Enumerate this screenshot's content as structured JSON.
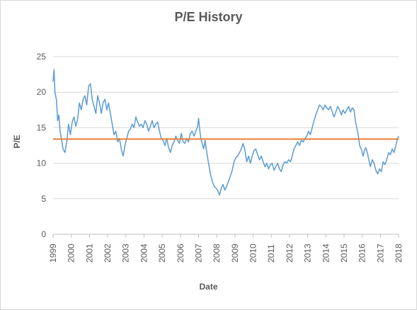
{
  "chart_data": {
    "type": "line",
    "title": "P/E History",
    "xlabel": "Date",
    "ylabel": "P/E",
    "ylim": [
      0,
      25
    ],
    "yticks": [
      "0",
      "5",
      "10",
      "15",
      "20",
      "25"
    ],
    "xlim": [
      1999.0,
      2018.0
    ],
    "xticks": [
      "1999",
      "2000",
      "2001",
      "2002",
      "2003",
      "2004",
      "2005",
      "2006",
      "2007",
      "2008",
      "2009",
      "2010",
      "2011",
      "2012",
      "2013",
      "2014",
      "2015",
      "2016",
      "2017",
      "2018"
    ],
    "grid": true,
    "legend": "none",
    "series": [
      {
        "color": "#5B9BD5",
        "points": [
          [
            1999.0,
            21.5
          ],
          [
            1999.05,
            23.2
          ],
          [
            1999.1,
            20.0
          ],
          [
            1999.18,
            19.0
          ],
          [
            1999.25,
            16.0
          ],
          [
            1999.32,
            16.8
          ],
          [
            1999.38,
            14.5
          ],
          [
            1999.45,
            13.5
          ],
          [
            1999.55,
            12.0
          ],
          [
            1999.65,
            11.5
          ],
          [
            1999.75,
            13.0
          ],
          [
            1999.85,
            15.5
          ],
          [
            1999.95,
            14.0
          ],
          [
            2000.05,
            15.8
          ],
          [
            2000.15,
            16.5
          ],
          [
            2000.25,
            15.2
          ],
          [
            2000.35,
            16.2
          ],
          [
            2000.45,
            18.5
          ],
          [
            2000.55,
            17.5
          ],
          [
            2000.65,
            19.0
          ],
          [
            2000.75,
            19.5
          ],
          [
            2000.85,
            18.2
          ],
          [
            2000.95,
            20.8
          ],
          [
            2001.05,
            21.2
          ],
          [
            2001.15,
            19.0
          ],
          [
            2001.25,
            18.0
          ],
          [
            2001.35,
            17.0
          ],
          [
            2001.45,
            19.5
          ],
          [
            2001.55,
            18.5
          ],
          [
            2001.65,
            17.0
          ],
          [
            2001.75,
            18.5
          ],
          [
            2001.85,
            19.0
          ],
          [
            2001.95,
            17.5
          ],
          [
            2002.05,
            18.5
          ],
          [
            2002.15,
            17.0
          ],
          [
            2002.25,
            15.5
          ],
          [
            2002.35,
            14.0
          ],
          [
            2002.45,
            14.5
          ],
          [
            2002.55,
            13.0
          ],
          [
            2002.65,
            13.5
          ],
          [
            2002.75,
            12.0
          ],
          [
            2002.85,
            11.0
          ],
          [
            2002.95,
            12.5
          ],
          [
            2003.05,
            13.5
          ],
          [
            2003.15,
            14.5
          ],
          [
            2003.25,
            14.8
          ],
          [
            2003.35,
            15.5
          ],
          [
            2003.45,
            15.0
          ],
          [
            2003.55,
            16.5
          ],
          [
            2003.65,
            15.8
          ],
          [
            2003.75,
            15.2
          ],
          [
            2003.85,
            15.5
          ],
          [
            2003.95,
            15.0
          ],
          [
            2004.05,
            16.0
          ],
          [
            2004.15,
            15.5
          ],
          [
            2004.25,
            14.5
          ],
          [
            2004.35,
            15.2
          ],
          [
            2004.45,
            16.0
          ],
          [
            2004.55,
            15.0
          ],
          [
            2004.65,
            15.5
          ],
          [
            2004.75,
            15.8
          ],
          [
            2004.85,
            14.5
          ],
          [
            2004.95,
            13.5
          ],
          [
            2005.05,
            13.2
          ],
          [
            2005.15,
            12.5
          ],
          [
            2005.25,
            13.5
          ],
          [
            2005.35,
            12.2
          ],
          [
            2005.45,
            11.5
          ],
          [
            2005.55,
            12.5
          ],
          [
            2005.65,
            13.0
          ],
          [
            2005.75,
            13.8
          ],
          [
            2005.85,
            13.2
          ],
          [
            2005.95,
            12.8
          ],
          [
            2006.05,
            14.2
          ],
          [
            2006.15,
            13.0
          ],
          [
            2006.25,
            12.8
          ],
          [
            2006.35,
            13.5
          ],
          [
            2006.45,
            13.0
          ],
          [
            2006.55,
            14.2
          ],
          [
            2006.65,
            14.5
          ],
          [
            2006.75,
            13.8
          ],
          [
            2006.85,
            14.5
          ],
          [
            2006.95,
            15.2
          ],
          [
            2007.0,
            16.3
          ],
          [
            2007.05,
            15.0
          ],
          [
            2007.12,
            13.5
          ],
          [
            2007.2,
            12.8
          ],
          [
            2007.28,
            12.0
          ],
          [
            2007.36,
            13.2
          ],
          [
            2007.45,
            11.5
          ],
          [
            2007.55,
            10.0
          ],
          [
            2007.65,
            8.5
          ],
          [
            2007.75,
            7.5
          ],
          [
            2007.85,
            6.8
          ],
          [
            2007.95,
            6.5
          ],
          [
            2008.05,
            6.2
          ],
          [
            2008.15,
            5.5
          ],
          [
            2008.25,
            6.5
          ],
          [
            2008.35,
            7.0
          ],
          [
            2008.45,
            6.2
          ],
          [
            2008.55,
            6.8
          ],
          [
            2008.65,
            7.5
          ],
          [
            2008.75,
            8.2
          ],
          [
            2008.85,
            9.0
          ],
          [
            2008.95,
            10.2
          ],
          [
            2009.05,
            10.8
          ],
          [
            2009.15,
            11.0
          ],
          [
            2009.25,
            11.5
          ],
          [
            2009.35,
            12.0
          ],
          [
            2009.45,
            12.8
          ],
          [
            2009.55,
            11.8
          ],
          [
            2009.65,
            10.2
          ],
          [
            2009.75,
            11.0
          ],
          [
            2009.85,
            10.0
          ],
          [
            2009.95,
            11.0
          ],
          [
            2010.05,
            11.8
          ],
          [
            2010.15,
            12.0
          ],
          [
            2010.25,
            11.2
          ],
          [
            2010.35,
            10.5
          ],
          [
            2010.45,
            11.0
          ],
          [
            2010.55,
            10.2
          ],
          [
            2010.65,
            9.5
          ],
          [
            2010.75,
            10.0
          ],
          [
            2010.85,
            9.2
          ],
          [
            2010.95,
            9.8
          ],
          [
            2011.05,
            10.0
          ],
          [
            2011.15,
            9.0
          ],
          [
            2011.25,
            9.5
          ],
          [
            2011.35,
            10.0
          ],
          [
            2011.45,
            9.2
          ],
          [
            2011.55,
            8.8
          ],
          [
            2011.65,
            9.8
          ],
          [
            2011.75,
            10.2
          ],
          [
            2011.85,
            10.0
          ],
          [
            2011.95,
            10.5
          ],
          [
            2012.05,
            10.2
          ],
          [
            2012.15,
            11.0
          ],
          [
            2012.25,
            12.0
          ],
          [
            2012.35,
            12.5
          ],
          [
            2012.45,
            13.0
          ],
          [
            2012.55,
            12.5
          ],
          [
            2012.65,
            13.2
          ],
          [
            2012.75,
            13.0
          ],
          [
            2012.85,
            13.5
          ],
          [
            2012.95,
            13.8
          ],
          [
            2013.05,
            14.5
          ],
          [
            2013.15,
            14.0
          ],
          [
            2013.25,
            15.0
          ],
          [
            2013.35,
            16.0
          ],
          [
            2013.45,
            16.8
          ],
          [
            2013.55,
            17.5
          ],
          [
            2013.65,
            18.2
          ],
          [
            2013.75,
            18.0
          ],
          [
            2013.85,
            17.5
          ],
          [
            2013.95,
            18.2
          ],
          [
            2014.05,
            17.8
          ],
          [
            2014.15,
            17.5
          ],
          [
            2014.25,
            18.0
          ],
          [
            2014.35,
            17.2
          ],
          [
            2014.45,
            16.5
          ],
          [
            2014.55,
            17.2
          ],
          [
            2014.65,
            18.0
          ],
          [
            2014.75,
            17.5
          ],
          [
            2014.85,
            16.8
          ],
          [
            2014.95,
            17.5
          ],
          [
            2015.05,
            17.0
          ],
          [
            2015.15,
            17.5
          ],
          [
            2015.25,
            18.0
          ],
          [
            2015.35,
            17.2
          ],
          [
            2015.45,
            17.8
          ],
          [
            2015.55,
            17.5
          ],
          [
            2015.62,
            16.0
          ],
          [
            2015.7,
            15.0
          ],
          [
            2015.78,
            14.0
          ],
          [
            2015.86,
            12.5
          ],
          [
            2015.95,
            12.0
          ],
          [
            2016.05,
            11.0
          ],
          [
            2016.12,
            11.8
          ],
          [
            2016.2,
            12.2
          ],
          [
            2016.28,
            11.5
          ],
          [
            2016.36,
            10.5
          ],
          [
            2016.45,
            9.5
          ],
          [
            2016.55,
            10.5
          ],
          [
            2016.65,
            10.0
          ],
          [
            2016.75,
            9.0
          ],
          [
            2016.85,
            8.5
          ],
          [
            2016.95,
            9.2
          ],
          [
            2017.05,
            8.8
          ],
          [
            2017.15,
            10.2
          ],
          [
            2017.25,
            9.8
          ],
          [
            2017.35,
            10.5
          ],
          [
            2017.45,
            11.5
          ],
          [
            2017.55,
            11.2
          ],
          [
            2017.65,
            12.0
          ],
          [
            2017.75,
            11.5
          ],
          [
            2017.85,
            12.5
          ],
          [
            2017.95,
            13.5
          ],
          [
            2018.0,
            13.8
          ]
        ]
      },
      {
        "color": "#ED7D31",
        "points": [
          [
            1999.0,
            13.4
          ],
          [
            2018.0,
            13.4
          ]
        ]
      }
    ]
  }
}
